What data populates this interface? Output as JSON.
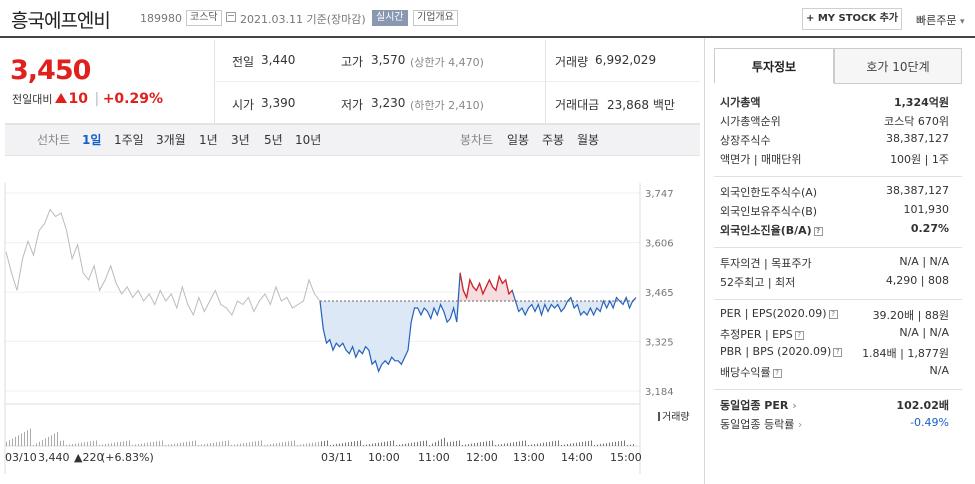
{
  "header": {
    "stock_name": "흥국에프엔비",
    "stock_code": "189980",
    "market_tag": "코스닥",
    "date_text": "2021.03.11",
    "basis_text": "기준(장마감)",
    "realtime_tag": "실시간",
    "company_info_tag": "기업개요",
    "my_stock_button": "+ MY STOCK 추가",
    "quick_order_button": "빠른주문"
  },
  "quote": {
    "price": "3,450",
    "compare_label": "전일대비",
    "change": "10",
    "change_pct": "+0.29%",
    "prev_label": "전일",
    "prev_value": "3,440",
    "open_label": "시가",
    "open_value": "3,390",
    "high_label": "고가",
    "high_value": "3,570",
    "upper_limit": "(상한가 4,470)",
    "low_label": "저가",
    "low_value": "3,230",
    "lower_limit": "(하한가 2,410)",
    "volume_label": "거래량",
    "volume_value": "6,992,029",
    "amount_label": "거래대금",
    "amount_value": "23,868",
    "amount_unit": "백만"
  },
  "tabs": {
    "line_label": "선차트",
    "periods": [
      "1일",
      "1주일",
      "3개월",
      "1년",
      "3년",
      "5년",
      "10년"
    ],
    "candle_label": "봉차트",
    "candles": [
      "일봉",
      "주봉",
      "월봉"
    ],
    "active": "1일"
  },
  "chart_labels": {
    "volume_legend": "거래량",
    "prev_day_date": "03/10",
    "prev_day_close": "3,440",
    "prev_day_change": "▲220",
    "prev_day_pct": "(+6.83%)"
  },
  "chart_data": {
    "type": "line",
    "ylim": [
      3184,
      3747
    ],
    "y_ticks": [
      3747,
      3606,
      3465,
      3325,
      3184
    ],
    "y_tick_labels": [
      "3,747",
      "3,606",
      "3,465",
      "3,325",
      "3,184"
    ],
    "x_tick_labels": [
      "03/11",
      "10:00",
      "11:00",
      "12:00",
      "13:00",
      "14:00",
      "15:00"
    ],
    "prev_close": 3440,
    "series": [
      {
        "x_range": [
          "09:00 (03/10 section)"
        ],
        "values": [
          3580,
          3520,
          3470,
          3560,
          3610,
          3570,
          3640,
          3660,
          3700,
          3680,
          3690,
          3640,
          3560,
          3600,
          3520,
          3500,
          3540,
          3470,
          3500,
          3540,
          3490,
          3460,
          3480,
          3450,
          3470,
          3440,
          3460,
          3430,
          3470,
          3440,
          3460,
          3420,
          3480,
          3430,
          3400,
          3450,
          3410,
          3440,
          3470,
          3430,
          3420,
          3400,
          3440,
          3430,
          3450,
          3410,
          3440,
          3460,
          3430,
          3480,
          3440,
          3450,
          3420,
          3430,
          3440,
          3500,
          3460,
          3440
        ]
      },
      {
        "values": [
          3440,
          3360,
          3320,
          3330,
          3300,
          3320,
          3310,
          3320,
          3300,
          3290,
          3310,
          3280,
          3300,
          3290,
          3310,
          3300,
          3260,
          3270,
          3240,
          3260,
          3270,
          3260,
          3280,
          3270,
          3270,
          3260,
          3280,
          3300,
          3380,
          3420,
          3420,
          3400,
          3420,
          3410,
          3390,
          3420,
          3400,
          3430,
          3410,
          3380,
          3390,
          3420,
          3380,
          3520,
          3470,
          3450,
          3500,
          3480,
          3470,
          3490,
          3460,
          3480,
          3500,
          3480,
          3470,
          3510,
          3490,
          3500,
          3460,
          3470,
          3440,
          3410,
          3420,
          3400,
          3420,
          3430,
          3410,
          3430,
          3400,
          3430,
          3410,
          3430,
          3420,
          3430,
          3410,
          3420,
          3440,
          3450,
          3420,
          3430,
          3400,
          3410,
          3400,
          3420,
          3400,
          3420,
          3410,
          3440,
          3420,
          3440,
          3420,
          3450,
          3440,
          3430,
          3450,
          3420,
          3440,
          3450
        ]
      }
    ]
  },
  "panel": {
    "tab_invest": "투자정보",
    "tab_orderbook": "호가 10단계",
    "rows": [
      {
        "label": "시가총액",
        "value": "1,324억원"
      },
      {
        "label": "시가총액순위",
        "value": "코스닥 670위"
      },
      {
        "label": "상장주식수",
        "value": "38,387,127"
      },
      {
        "label": "액면가 | 매매단위",
        "value": "100원 | 1주"
      },
      {
        "label": "외국인한도주식수(A)",
        "value": "38,387,127"
      },
      {
        "label": "외국인보유주식수(B)",
        "value": "101,930"
      },
      {
        "label": "외국인소진율(B/A)",
        "value": "0.27%"
      },
      {
        "label": "투자의견 | 목표주가",
        "value": "N/A | N/A"
      },
      {
        "label": "52주최고 | 최저",
        "value": "4,290 | 808"
      },
      {
        "label": "PER | EPS(2020.09)",
        "value": "39.20배 | 88원"
      },
      {
        "label": "추정PER | EPS",
        "value": "N/A | N/A"
      },
      {
        "label": "PBR | BPS (2020.09)",
        "value": "1.84배 | 1,877원"
      },
      {
        "label": "배당수익률",
        "value": "N/A"
      },
      {
        "label": "동일업종 PER",
        "value": "102.02배"
      },
      {
        "label": "동일업종 등락률",
        "value": "-0.49%"
      }
    ]
  }
}
